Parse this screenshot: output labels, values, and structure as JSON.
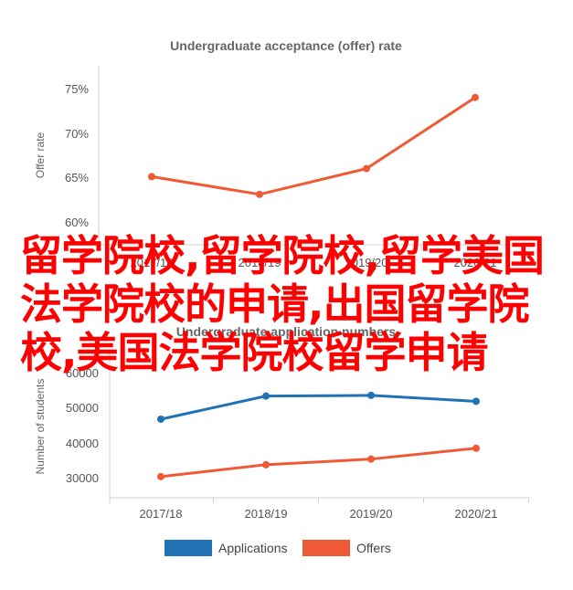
{
  "chart_data": [
    {
      "type": "line",
      "title": "Undergraduate acceptance (offer) rate",
      "xlabel": "",
      "ylabel": "Offer rate",
      "categories": [
        "2017/18",
        "2018/19",
        "2019/20",
        "2020/21"
      ],
      "series": [
        {
          "values": [
            0.651,
            0.631,
            0.66,
            0.74
          ],
          "color": "#ef5a35"
        }
      ],
      "yticks": [
        "60%",
        "65%",
        "70%",
        "75%"
      ],
      "ylim": [
        0.6,
        0.77
      ],
      "grid": false,
      "legend": false
    },
    {
      "type": "line",
      "title": "Undergraduate application numbers",
      "xlabel": "",
      "ylabel": "Number of students",
      "categories": [
        "2017/18",
        "2018/19",
        "2019/20",
        "2020/21"
      ],
      "series": [
        {
          "name": "Applications",
          "values": [
            46700,
            53300,
            53500,
            51800
          ],
          "color": "#2172b4"
        },
        {
          "name": "Offers",
          "values": [
            30300,
            33700,
            35300,
            38400
          ],
          "color": "#ef5a35"
        }
      ],
      "yticks": [
        "30000",
        "40000",
        "50000",
        "60000"
      ],
      "ylim": [
        26000,
        64000
      ],
      "grid": false,
      "legend": "bottom"
    }
  ],
  "overlay_text": "留学院校,留学院校,留学美国法学院校的申请,出国留学院校,美国法学院校留学申请"
}
